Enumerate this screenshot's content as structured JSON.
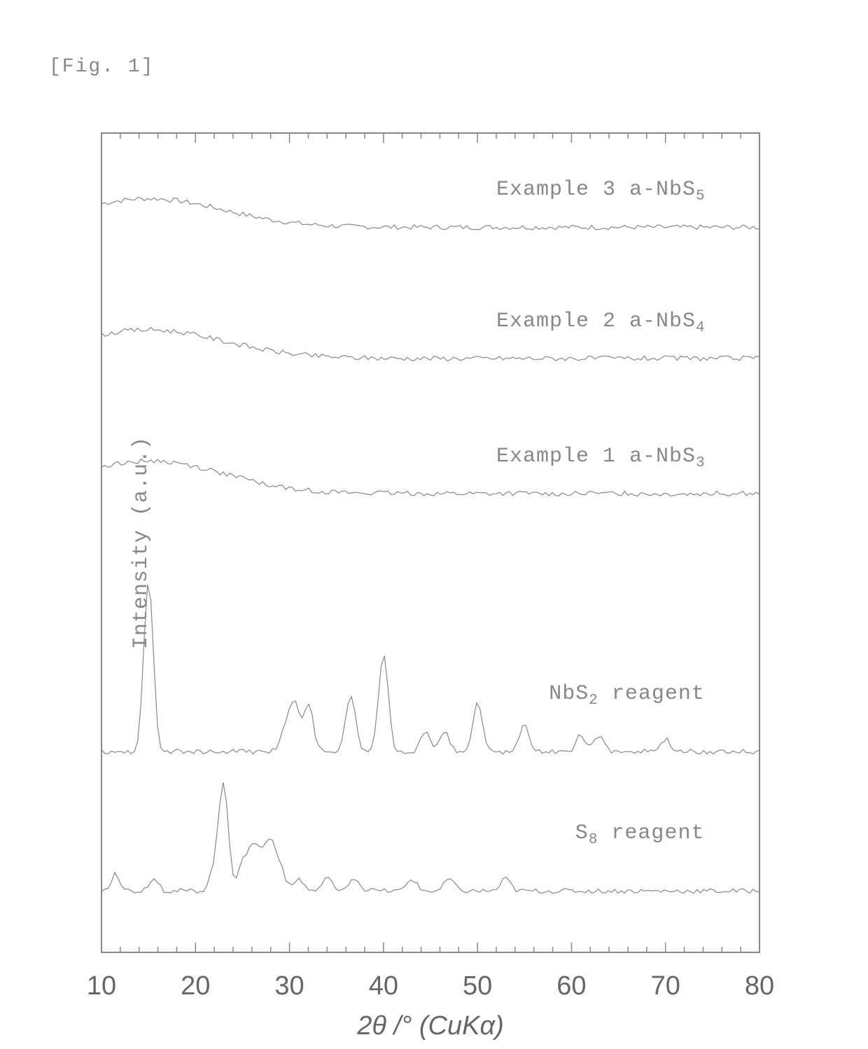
{
  "figure_label": "[Fig. 1]",
  "chart": {
    "type": "line",
    "background_color": "#ffffff",
    "border_color": "#888888",
    "border_width": 2,
    "trace_color": "#888888",
    "trace_width": 1.2,
    "xlabel": "2θ /° (CuKα)",
    "ylabel": "Intensity (a.u.)",
    "label_fontsize": 30,
    "label_color": "#888888",
    "xlim": [
      10,
      80
    ],
    "xtick_step": 10,
    "xticks": [
      10,
      20,
      30,
      40,
      50,
      60,
      70,
      80
    ],
    "minor_xticks": true,
    "series": [
      {
        "name": "Example 3  a-NbS5",
        "label_html": "Example 3  a-NbS<sub>5</sub>",
        "baseline_y": 0.88,
        "label_x": 0.6,
        "label_y": 0.055,
        "peaks": [
          {
            "x": 15,
            "h": 0.035,
            "w": 8
          }
        ],
        "amorphous": true
      },
      {
        "name": "Example 2  a-NbS4",
        "label_html": "Example 2  a-NbS<sub>4</sub>",
        "baseline_y": 0.72,
        "label_x": 0.6,
        "label_y": 0.215,
        "peaks": [
          {
            "x": 15,
            "h": 0.035,
            "w": 8
          }
        ],
        "amorphous": true
      },
      {
        "name": "Example 1  a-NbS3",
        "label_html": "Example 1  a-NbS<sub>3</sub>",
        "baseline_y": 0.555,
        "label_x": 0.6,
        "label_y": 0.38,
        "peaks": [
          {
            "x": 15,
            "h": 0.04,
            "w": 8
          }
        ],
        "amorphous": true
      },
      {
        "name": "NbS2 reagent",
        "label_html": "NbS<sub>2</sub> reagent",
        "baseline_y": 0.245,
        "label_x": 0.68,
        "label_y": 0.67,
        "peaks": [
          {
            "x": 15,
            "h": 0.21,
            "w": 0.5
          },
          {
            "x": 29.5,
            "h": 0.025,
            "w": 0.5
          },
          {
            "x": 30.5,
            "h": 0.06,
            "w": 0.5
          },
          {
            "x": 32,
            "h": 0.06,
            "w": 0.5
          },
          {
            "x": 36.5,
            "h": 0.07,
            "w": 0.5
          },
          {
            "x": 40,
            "h": 0.12,
            "w": 0.5
          },
          {
            "x": 44.5,
            "h": 0.025,
            "w": 0.5
          },
          {
            "x": 46.5,
            "h": 0.025,
            "w": 0.5
          },
          {
            "x": 50,
            "h": 0.06,
            "w": 0.5
          },
          {
            "x": 55,
            "h": 0.035,
            "w": 0.5
          },
          {
            "x": 61,
            "h": 0.02,
            "w": 0.5
          },
          {
            "x": 63,
            "h": 0.02,
            "w": 0.5
          },
          {
            "x": 70,
            "h": 0.015,
            "w": 0.5
          }
        ],
        "amorphous": false
      },
      {
        "name": "S8 reagent",
        "label_html": "S<sub>8</sub> reagent",
        "baseline_y": 0.075,
        "label_x": 0.72,
        "label_y": 0.84,
        "peaks": [
          {
            "x": 11.5,
            "h": 0.02,
            "w": 0.5
          },
          {
            "x": 15.5,
            "h": 0.015,
            "w": 0.5
          },
          {
            "x": 22,
            "h": 0.025,
            "w": 0.5
          },
          {
            "x": 23,
            "h": 0.13,
            "w": 0.5
          },
          {
            "x": 25,
            "h": 0.03,
            "w": 0.5
          },
          {
            "x": 26,
            "h": 0.05,
            "w": 0.5
          },
          {
            "x": 27,
            "h": 0.04,
            "w": 0.5
          },
          {
            "x": 28,
            "h": 0.055,
            "w": 0.5
          },
          {
            "x": 29,
            "h": 0.03,
            "w": 0.5
          },
          {
            "x": 31,
            "h": 0.015,
            "w": 0.5
          },
          {
            "x": 34,
            "h": 0.015,
            "w": 0.5
          },
          {
            "x": 37,
            "h": 0.015,
            "w": 0.5
          },
          {
            "x": 43,
            "h": 0.015,
            "w": 0.5
          },
          {
            "x": 47,
            "h": 0.015,
            "w": 0.5
          },
          {
            "x": 53,
            "h": 0.015,
            "w": 0.5
          }
        ],
        "amorphous": false
      }
    ]
  }
}
